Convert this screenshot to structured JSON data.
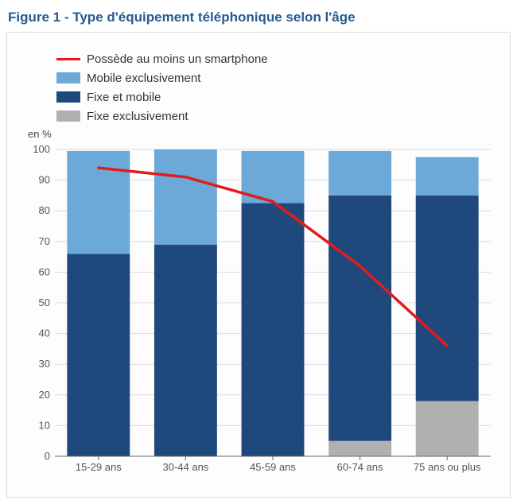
{
  "title": "Figure 1 - Type d'équipement téléphonique selon l'âge",
  "unit_label": "en %",
  "legend": {
    "line": {
      "label": "Possède au moins un smartphone",
      "color": "#e31b1b",
      "width": 3.5
    },
    "series": [
      {
        "key": "mobile_only",
        "label": "Mobile exclusivement",
        "color": "#6ca8d8"
      },
      {
        "key": "both",
        "label": "Fixe et mobile",
        "color": "#1f497d"
      },
      {
        "key": "fixed_only",
        "label": "Fixe exclusivement",
        "color": "#b0b0b0"
      }
    ]
  },
  "chart": {
    "type": "stacked_bar_with_line",
    "categories": [
      "15-29 ans",
      "30-44 ans",
      "45-59 ans",
      "60-74 ans",
      "75 ans ou plus"
    ],
    "stack_order_bottom_to_top": [
      "fixed_only",
      "both",
      "mobile_only"
    ],
    "series": {
      "fixed_only": [
        0,
        0,
        0,
        5,
        18
      ],
      "both": [
        66,
        69,
        82.5,
        80,
        67
      ],
      "mobile_only": [
        33.5,
        31,
        17,
        14.5,
        12.5
      ]
    },
    "line_values": [
      94,
      91,
      83,
      62,
      36
    ],
    "y": {
      "min": 0,
      "max": 100,
      "step": 10
    },
    "style": {
      "background": "#fdfdfe",
      "grid_color": "#d7dde2",
      "axis_color": "#666666",
      "tick_font_size": 13,
      "category_font_size": 13,
      "bar_width_ratio": 0.72,
      "line_marker_radius": 0
    }
  },
  "colors": {
    "title": "#285a8f",
    "panel_border": "#d7dde2"
  }
}
